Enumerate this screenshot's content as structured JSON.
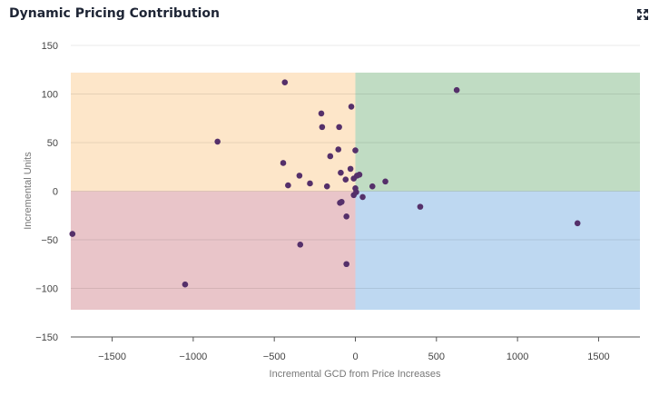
{
  "header": {
    "title": "Dynamic Pricing Contribution",
    "expand_icon": "expand-icon"
  },
  "colors": {
    "quadrant_top_left": "#fde6c9",
    "quadrant_top_right": "#c0dcc3",
    "quadrant_bottom_left": "#e9c5c9",
    "quadrant_bottom_right": "#bed8f1",
    "point": "#55306a"
  },
  "chart_data": {
    "type": "scatter",
    "title": "Dynamic Pricing Contribution",
    "xlabel": "Incremental GCD from Price Increases",
    "ylabel": "Incremental Units",
    "xlim": [
      -1755,
      1755
    ],
    "ylim": [
      -150,
      150
    ],
    "xticks": [
      -1500,
      -1000,
      -500,
      0,
      500,
      1000,
      1500
    ],
    "yticks": [
      150,
      100,
      50,
      0,
      -50,
      -100,
      -150
    ],
    "quadrants": {
      "x_range": [
        -1755,
        1755
      ],
      "y_range": [
        -122,
        122
      ]
    },
    "grid": true,
    "points": [
      {
        "x": -1745,
        "y": -44
      },
      {
        "x": -1050,
        "y": -96
      },
      {
        "x": -850,
        "y": 51
      },
      {
        "x": -435,
        "y": 112
      },
      {
        "x": -445,
        "y": 29
      },
      {
        "x": -415,
        "y": 6
      },
      {
        "x": -345,
        "y": 16
      },
      {
        "x": -340,
        "y": -55
      },
      {
        "x": -280,
        "y": 8
      },
      {
        "x": -210,
        "y": 80
      },
      {
        "x": -205,
        "y": 66
      },
      {
        "x": -175,
        "y": 5
      },
      {
        "x": -155,
        "y": 36
      },
      {
        "x": -105,
        "y": 43
      },
      {
        "x": -100,
        "y": 66
      },
      {
        "x": -90,
        "y": 19
      },
      {
        "x": -95,
        "y": -12
      },
      {
        "x": -85,
        "y": -11
      },
      {
        "x": -60,
        "y": 12
      },
      {
        "x": -55,
        "y": -26
      },
      {
        "x": -55,
        "y": -75
      },
      {
        "x": -30,
        "y": 23
      },
      {
        "x": -25,
        "y": 87
      },
      {
        "x": -10,
        "y": 13
      },
      {
        "x": -10,
        "y": -4
      },
      {
        "x": 0,
        "y": 42
      },
      {
        "x": 0,
        "y": 3
      },
      {
        "x": 5,
        "y": -1
      },
      {
        "x": 10,
        "y": 16
      },
      {
        "x": 25,
        "y": 17
      },
      {
        "x": 45,
        "y": -6
      },
      {
        "x": 105,
        "y": 5
      },
      {
        "x": 185,
        "y": 10
      },
      {
        "x": 400,
        "y": -16
      },
      {
        "x": 625,
        "y": 104
      },
      {
        "x": 1370,
        "y": -33
      }
    ]
  }
}
